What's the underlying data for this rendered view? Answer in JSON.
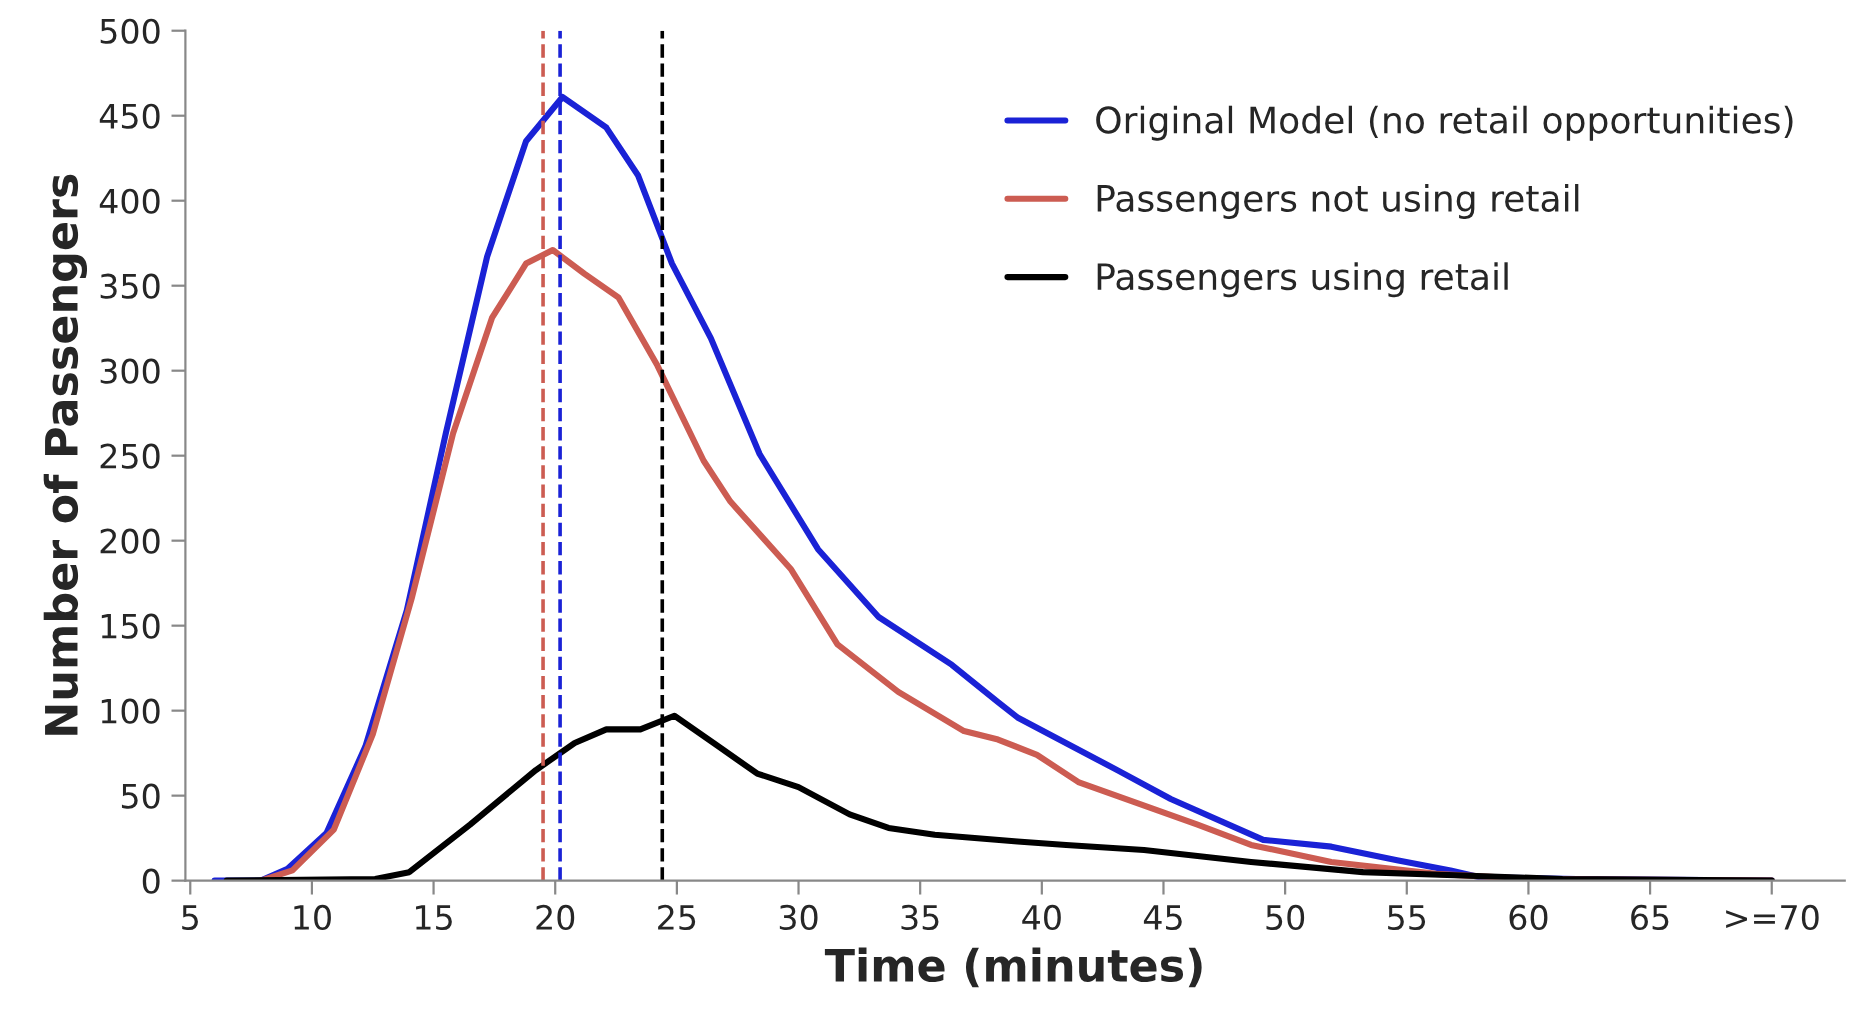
{
  "chart_data": {
    "type": "line",
    "xlabel": "Time (minutes)",
    "ylabel": "Number of Passengers",
    "xlim": [
      4.8,
      73
    ],
    "xticks": [
      5,
      10,
      15,
      20,
      25,
      30,
      35,
      40,
      45,
      50,
      55,
      60,
      65,
      {
        "value": 70,
        "label": ">=70"
      }
    ],
    "ylim": [
      0,
      500
    ],
    "yticks": [
      0,
      50,
      100,
      150,
      200,
      250,
      300,
      350,
      400,
      450,
      500
    ],
    "grid": false,
    "legend": "top right",
    "marker": "none",
    "line_style": "solid",
    "series": [
      {
        "name": "Original Model (no retail opportunities)",
        "color": "#1a22d6",
        "x": [
          6,
          7.9,
          9.0,
          10.6,
          12.2,
          13.9,
          15.5,
          17.2,
          18.8,
          20.3,
          22.1,
          23.4,
          24.8,
          26.4,
          28.4,
          30.8,
          33.3,
          36.3,
          38.2,
          39.0,
          43.1,
          45.3,
          49.1,
          51.9,
          54.6,
          56.8,
          58,
          62,
          70
        ],
        "values": [
          0,
          0,
          7,
          28,
          79,
          159,
          263,
          367,
          435,
          461,
          443,
          415,
          363,
          319,
          251,
          195,
          155,
          127,
          105,
          96,
          65,
          48,
          24,
          20,
          12,
          6,
          2,
          1,
          0
        ]
      },
      {
        "name": "Passengers not using retail",
        "color": "#cc5c52",
        "x": [
          7.9,
          9.2,
          10.9,
          12.5,
          14.1,
          15.8,
          17.4,
          18.8,
          19.9,
          21.2,
          22.6,
          24.2,
          26.1,
          27.2,
          29.7,
          31.6,
          34.1,
          36.8,
          38.2,
          39.8,
          41.5,
          46.4,
          48.6,
          51.9,
          56.2,
          60,
          70
        ],
        "values": [
          0,
          6,
          30,
          86,
          166,
          263,
          331,
          363,
          371,
          357,
          343,
          303,
          247,
          223,
          183,
          139,
          111,
          88,
          83,
          74,
          58,
          33,
          21,
          11,
          4,
          1,
          0
        ]
      },
      {
        "name": "Passengers using retail",
        "color": "#000000",
        "x": [
          6.5,
          12.6,
          14.0,
          16.5,
          19.2,
          20.8,
          22.1,
          23.5,
          24.9,
          26.7,
          28.3,
          30.0,
          32.1,
          33.7,
          35.6,
          39.0,
          41.0,
          44.2,
          48.6,
          53.2,
          57.3,
          61.4,
          70
        ],
        "values": [
          0,
          1,
          5,
          33,
          65,
          81,
          89,
          89,
          97,
          79,
          63,
          55,
          39,
          31,
          27,
          23,
          21,
          18,
          11,
          5,
          3,
          1,
          0
        ]
      }
    ],
    "ref_lines": [
      {
        "axis": "x",
        "value": 19.5,
        "color": "#cc5c52",
        "line_style": "dashed"
      },
      {
        "axis": "x",
        "value": 20.2,
        "color": "#1a22d6",
        "line_style": "dashed"
      },
      {
        "axis": "x",
        "value": 24.4,
        "color": "#000000",
        "line_style": "dashed"
      }
    ]
  }
}
